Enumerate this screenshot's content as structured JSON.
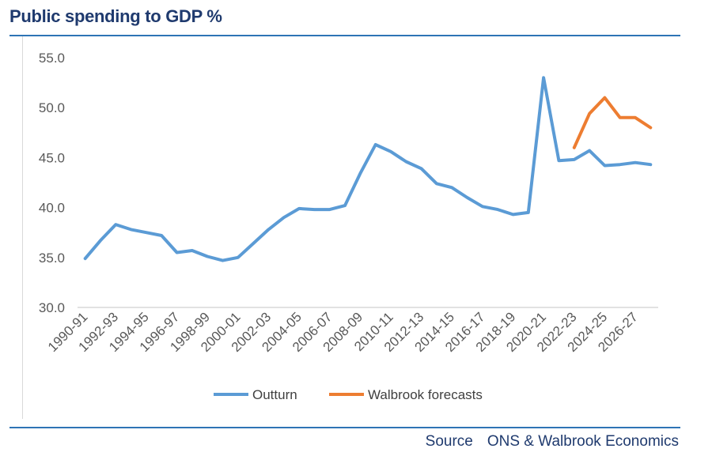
{
  "page": {
    "title": "Public spending to GDP %"
  },
  "source": {
    "label": "Source",
    "text": "ONS & Walbrook Economics"
  },
  "chart_data": {
    "type": "line",
    "title": "Public spending to GDP %",
    "xlabel": "",
    "ylabel": "",
    "ylim": [
      30,
      55
    ],
    "yticks": [
      "30.0",
      "35.0",
      "40.0",
      "45.0",
      "50.0",
      "55.0"
    ],
    "x": [
      "1990-91",
      "1991-92",
      "1992-93",
      "1993-94",
      "1994-95",
      "1995-96",
      "1996-97",
      "1997-98",
      "1998-99",
      "1999-00",
      "2000-01",
      "2001-02",
      "2002-03",
      "2003-04",
      "2004-05",
      "2005-06",
      "2006-07",
      "2007-08",
      "2008-09",
      "2009-10",
      "2010-11",
      "2011-12",
      "2012-13",
      "2013-14",
      "2014-15",
      "2015-16",
      "2016-17",
      "2017-18",
      "2018-19",
      "2019-20",
      "2020-21",
      "2021-22",
      "2022-23",
      "2023-24",
      "2024-25",
      "2025-26",
      "2026-27",
      "2027-28"
    ],
    "xticks_shown": [
      "1990-91",
      "1992-93",
      "1994-95",
      "1996-97",
      "1998-99",
      "2000-01",
      "2002-03",
      "2004-05",
      "2006-07",
      "2008-09",
      "2010-11",
      "2012-13",
      "2014-15",
      "2016-17",
      "2018-19",
      "2020-21",
      "2022-23",
      "2024-25",
      "2026-27"
    ],
    "series": [
      {
        "name": "Outturn",
        "color": "#5b9bd5",
        "values": [
          34.9,
          36.7,
          38.3,
          37.8,
          37.5,
          37.2,
          35.5,
          35.7,
          35.1,
          34.7,
          35.0,
          36.4,
          37.8,
          39.0,
          39.9,
          39.8,
          39.8,
          40.2,
          43.4,
          46.3,
          45.6,
          44.6,
          43.9,
          42.4,
          42.0,
          41.0,
          40.1,
          39.8,
          39.3,
          39.5,
          53.0,
          44.7,
          44.8,
          45.7,
          44.2,
          44.3,
          44.5,
          44.3
        ]
      },
      {
        "name": "Walbrook forecasts",
        "color": "#ed7d31",
        "values": [
          null,
          null,
          null,
          null,
          null,
          null,
          null,
          null,
          null,
          null,
          null,
          null,
          null,
          null,
          null,
          null,
          null,
          null,
          null,
          null,
          null,
          null,
          null,
          null,
          null,
          null,
          null,
          null,
          null,
          null,
          null,
          null,
          46.0,
          49.4,
          51.0,
          49.0,
          49.0,
          48.0
        ]
      }
    ],
    "legend": {
      "position": "bottom",
      "items": [
        "Outturn",
        "Walbrook forecasts"
      ]
    },
    "grid": false
  }
}
